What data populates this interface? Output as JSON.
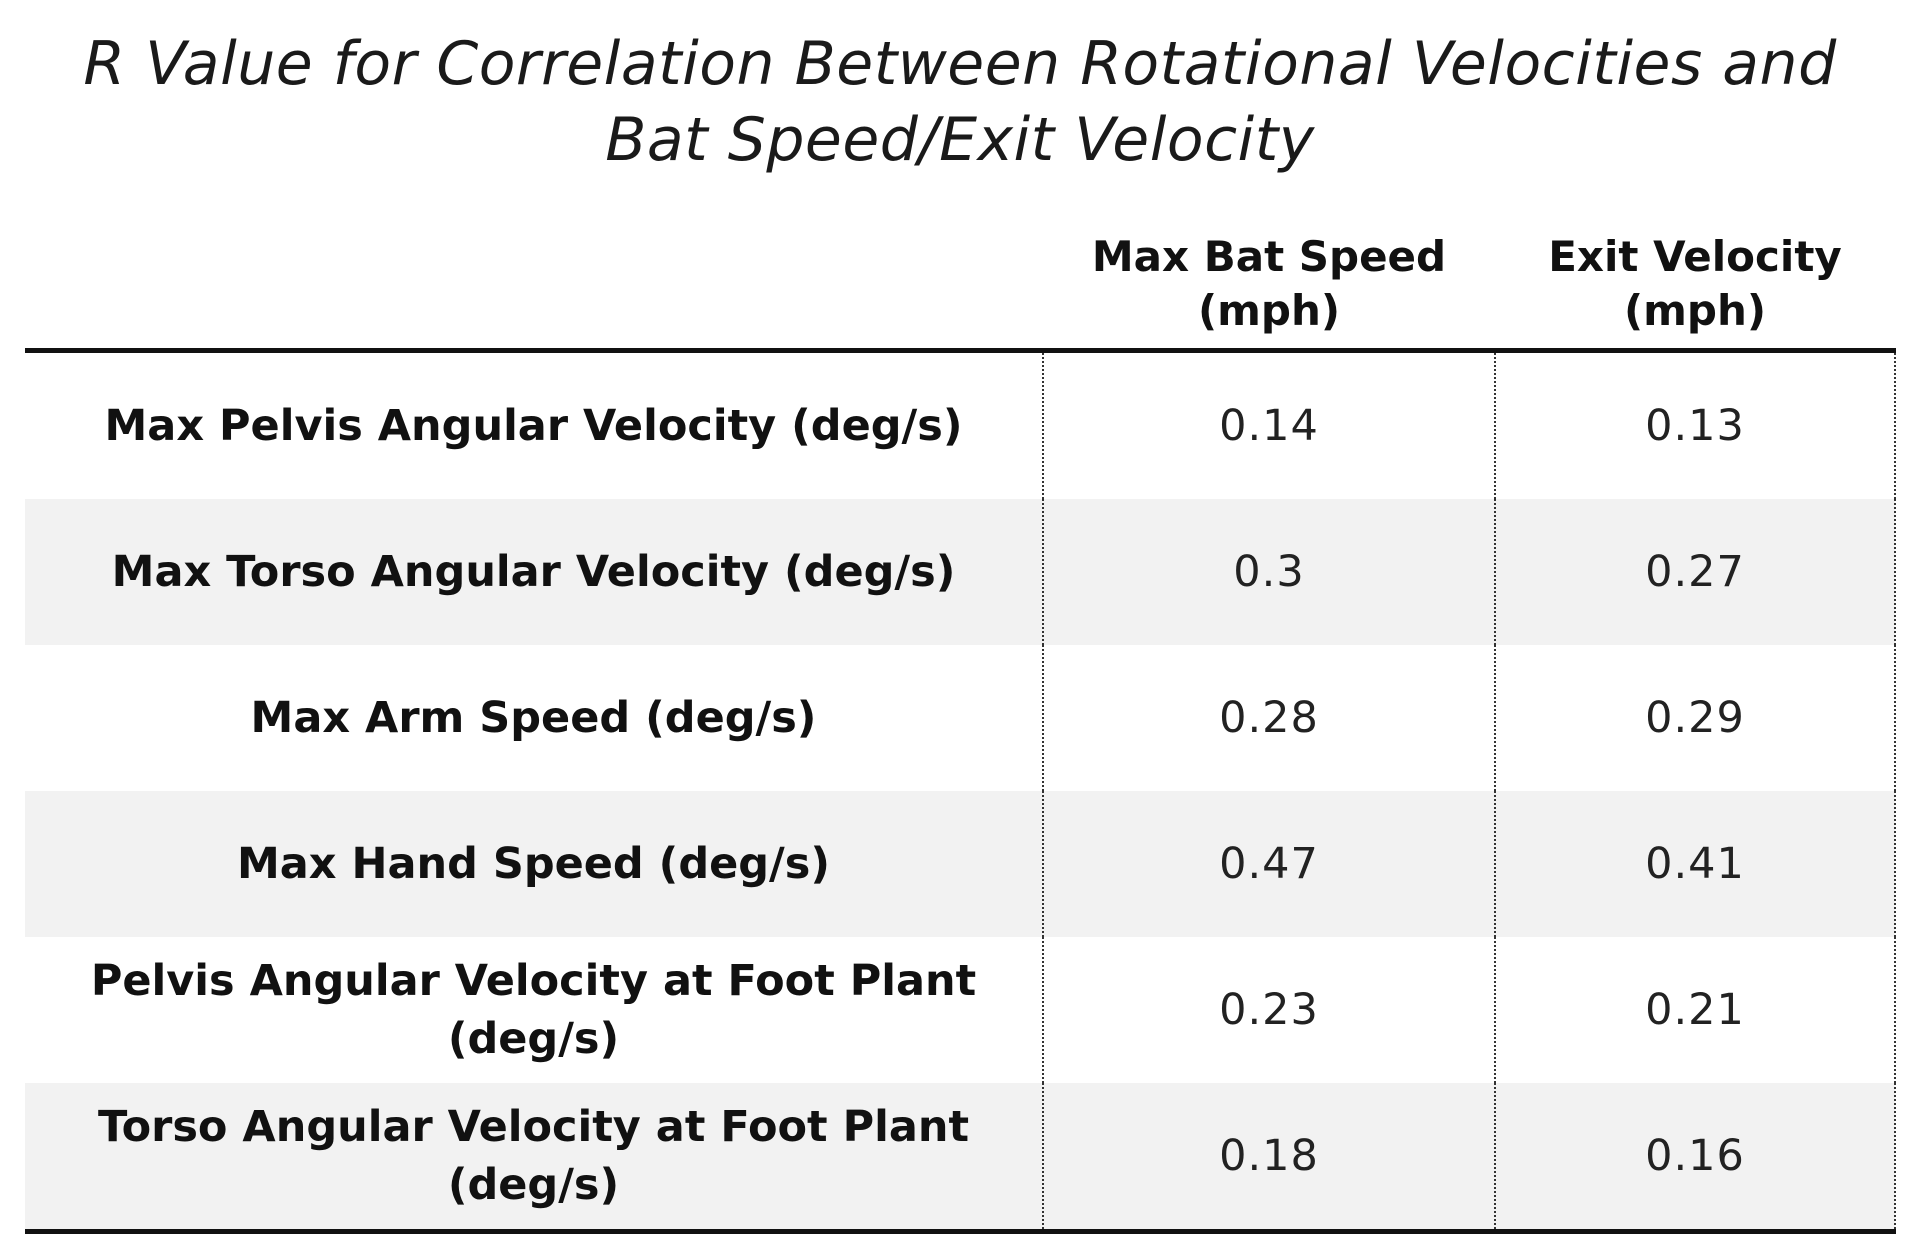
{
  "title_lines": [
    "R Value for Correlation Between Rotational Velocities and",
    "Bat Speed/Exit Velocity"
  ],
  "columns": {
    "bat_speed": [
      "Max Bat Speed",
      "(mph)"
    ],
    "exit_velocity": [
      "Exit Velocity",
      "(mph)"
    ]
  },
  "rows": [
    {
      "label": "Max Pelvis Angular Velocity (deg/s)",
      "bat_speed": "0.14",
      "exit_velocity": "0.13"
    },
    {
      "label": "Max Torso Angular Velocity (deg/s)",
      "bat_speed": "0.3",
      "exit_velocity": "0.27"
    },
    {
      "label": "Max Arm Speed (deg/s)",
      "bat_speed": "0.28",
      "exit_velocity": "0.29"
    },
    {
      "label": "Max Hand Speed (deg/s)",
      "bat_speed": "0.47",
      "exit_velocity": "0.41"
    },
    {
      "label": "Pelvis Angular Velocity at Foot Plant (deg/s)",
      "bat_speed": "0.23",
      "exit_velocity": "0.21"
    },
    {
      "label": "Torso Angular Velocity at Foot Plant (deg/s)",
      "bat_speed": "0.18",
      "exit_velocity": "0.16"
    }
  ],
  "chart_data": {
    "type": "table",
    "title": "R Value for Correlation Between Rotational Velocities and Bat Speed/Exit Velocity",
    "columns": [
      "Max Bat Speed (mph)",
      "Exit Velocity (mph)"
    ],
    "row_labels": [
      "Max Pelvis Angular Velocity (deg/s)",
      "Max Torso Angular Velocity (deg/s)",
      "Max Arm Speed (deg/s)",
      "Max Hand Speed (deg/s)",
      "Pelvis Angular Velocity at Foot Plant (deg/s)",
      "Torso Angular Velocity at Foot Plant (deg/s)"
    ],
    "series": [
      {
        "name": "Max Bat Speed (mph)",
        "values": [
          0.14,
          0.3,
          0.28,
          0.47,
          0.23,
          0.18
        ]
      },
      {
        "name": "Exit Velocity (mph)",
        "values": [
          0.13,
          0.27,
          0.29,
          0.41,
          0.21,
          0.16
        ]
      }
    ]
  }
}
